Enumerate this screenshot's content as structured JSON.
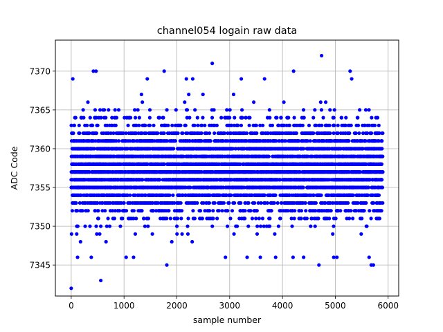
{
  "chart_data": {
    "type": "scatter",
    "title": "channel054 logain raw data",
    "xlabel": "sample number",
    "ylabel": "ADC Code",
    "xlim": [
      -300,
      6200
    ],
    "ylim": [
      7341,
      7374
    ],
    "xticks": [
      0,
      1000,
      2000,
      3000,
      4000,
      5000,
      6000
    ],
    "yticks": [
      7345,
      7350,
      7355,
      7360,
      7365,
      7370
    ],
    "grid": true,
    "marker_color": "#0000ff",
    "marker": "circle",
    "n_points": 5900,
    "band_low": 7347,
    "band_high": 7367,
    "band_center": 7357.5,
    "outliers": [
      {
        "x": 0,
        "y": 7342
      },
      {
        "x": 560,
        "y": 7343
      },
      {
        "x": 1810,
        "y": 7345
      },
      {
        "x": 4690,
        "y": 7345
      },
      {
        "x": 5680,
        "y": 7345
      },
      {
        "x": 5720,
        "y": 7345
      },
      {
        "x": 30,
        "y": 7369
      },
      {
        "x": 420,
        "y": 7370
      },
      {
        "x": 470,
        "y": 7370
      },
      {
        "x": 1440,
        "y": 7369
      },
      {
        "x": 1760,
        "y": 7370
      },
      {
        "x": 2180,
        "y": 7369
      },
      {
        "x": 2300,
        "y": 7369
      },
      {
        "x": 2670,
        "y": 7371
      },
      {
        "x": 3220,
        "y": 7369
      },
      {
        "x": 3660,
        "y": 7369
      },
      {
        "x": 4210,
        "y": 7370
      },
      {
        "x": 4740,
        "y": 7372
      },
      {
        "x": 5280,
        "y": 7370
      },
      {
        "x": 5310,
        "y": 7369
      },
      {
        "x": 120,
        "y": 7346
      },
      {
        "x": 380,
        "y": 7346
      },
      {
        "x": 1040,
        "y": 7346
      },
      {
        "x": 1180,
        "y": 7346
      },
      {
        "x": 2920,
        "y": 7346
      },
      {
        "x": 3330,
        "y": 7346
      },
      {
        "x": 3580,
        "y": 7346
      },
      {
        "x": 3870,
        "y": 7346
      },
      {
        "x": 4200,
        "y": 7346
      },
      {
        "x": 4400,
        "y": 7346
      },
      {
        "x": 4970,
        "y": 7346
      },
      {
        "x": 5030,
        "y": 7346
      },
      {
        "x": 5640,
        "y": 7346
      }
    ]
  }
}
